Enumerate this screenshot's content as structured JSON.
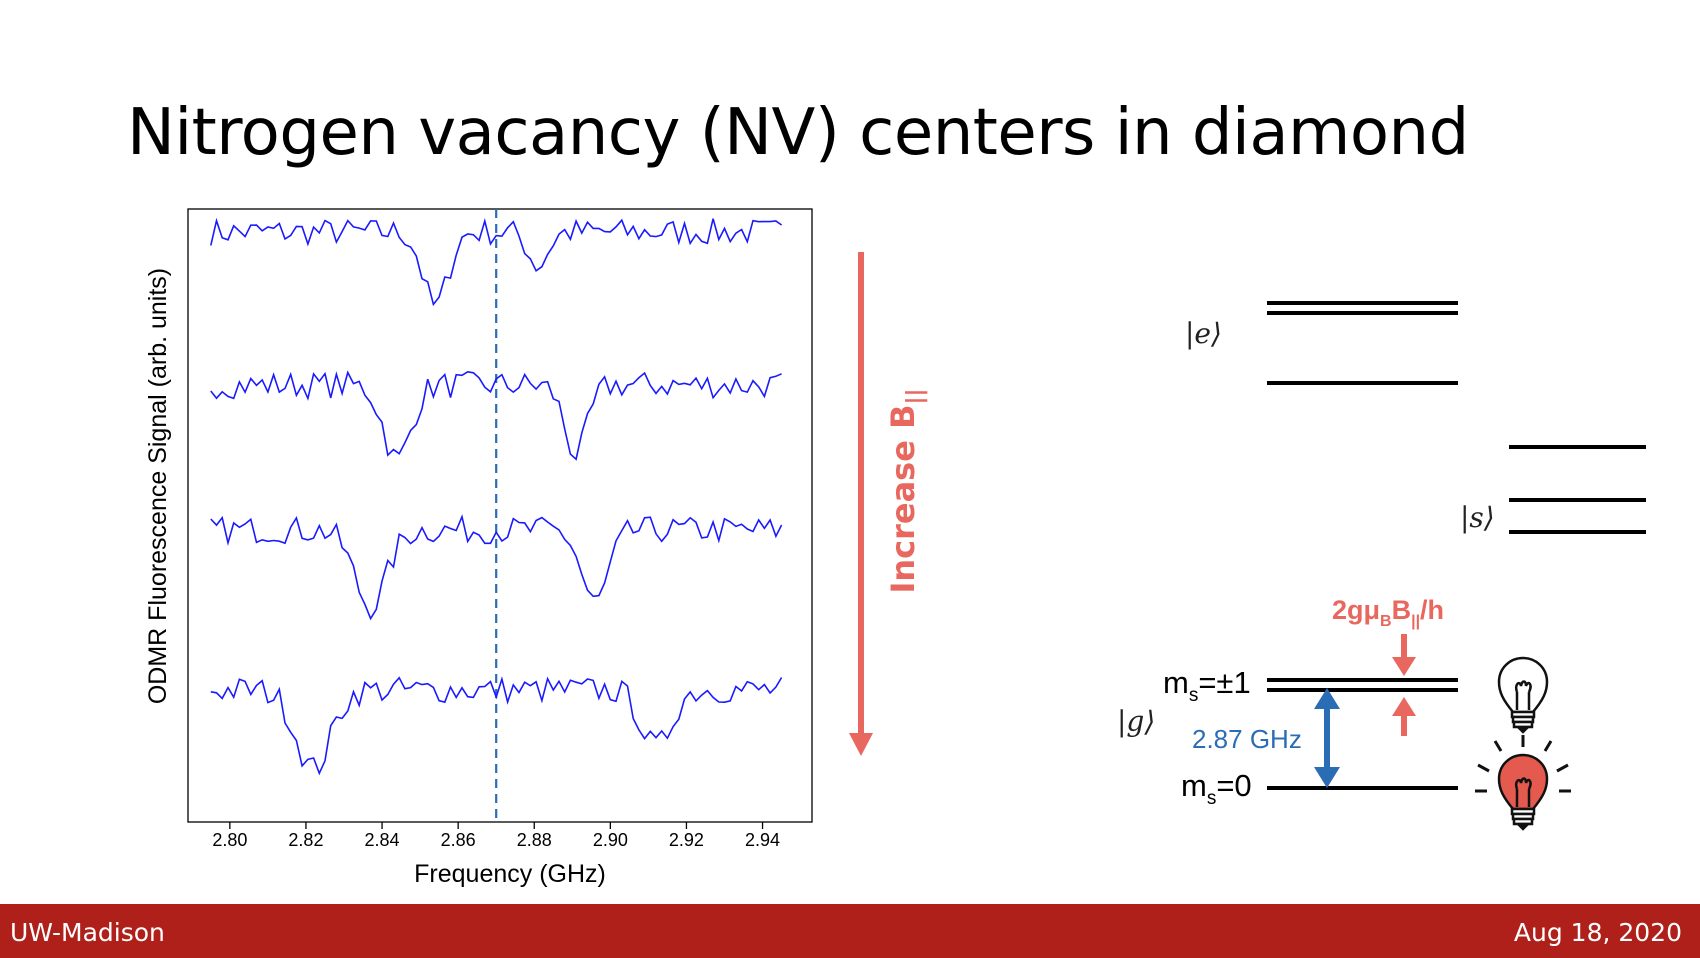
{
  "slide": {
    "title": "Nitrogen vacancy (NV) centers in diamond",
    "footer_left": "UW-Madison",
    "footer_right": "Aug 18, 2020"
  },
  "colors": {
    "trace": "#1a1aff",
    "accent_red": "#e8675e",
    "accent_blue": "#2a6db5",
    "footer": "#b0201a"
  },
  "chart_data": {
    "type": "line",
    "xlabel": "Frequency (GHz)",
    "ylabel": "ODMR Fluorescence Signal (arb. units)",
    "xlim": [
      2.789,
      2.953
    ],
    "xticks": [
      "2.80",
      "2.82",
      "2.84",
      "2.86",
      "2.88",
      "2.90",
      "2.92",
      "2.94"
    ],
    "xtick_values": [
      2.8,
      2.82,
      2.84,
      2.86,
      2.88,
      2.9,
      2.92,
      2.94
    ],
    "reference_line": {
      "x": 2.87,
      "style": "dashed"
    },
    "series": [
      {
        "offset": 3,
        "dips": [
          {
            "center": 2.854,
            "depth": 0.78,
            "width": 0.0032
          },
          {
            "center": 2.881,
            "depth": 0.35,
            "width": 0.0025
          }
        ]
      },
      {
        "offset": 2,
        "dips": [
          {
            "center": 2.844,
            "depth": 0.78,
            "width": 0.0035
          },
          {
            "center": 2.891,
            "depth": 0.72,
            "width": 0.003
          }
        ]
      },
      {
        "offset": 1,
        "dips": [
          {
            "center": 2.837,
            "depth": 0.8,
            "width": 0.0042
          },
          {
            "center": 2.896,
            "depth": 0.76,
            "width": 0.0035
          }
        ]
      },
      {
        "offset": 0,
        "dips": [
          {
            "center": 2.822,
            "depth": 0.82,
            "width": 0.0045
          },
          {
            "center": 2.912,
            "depth": 0.6,
            "width": 0.0038
          }
        ]
      }
    ]
  },
  "arrow_label": {
    "prefix": "Increase B",
    "subscript": "||"
  },
  "energy_diagram": {
    "excited_label": "|e⟩",
    "singlet_label": "|s⟩",
    "ground_label": "|g⟩",
    "ms_pm1_prefix": "m",
    "ms_pm1_sub": "s",
    "ms_pm1_suffix": "=±1",
    "ms0_prefix": "m",
    "ms0_sub": "s",
    "ms0_suffix": "=0",
    "zero_field": "2.87 GHz",
    "zeeman": {
      "a": "2gμ",
      "b": "B",
      "c": "B",
      "d": "||",
      "e": "/h"
    },
    "icons": [
      "lightbulb-off-icon",
      "lightbulb-on-icon"
    ]
  }
}
